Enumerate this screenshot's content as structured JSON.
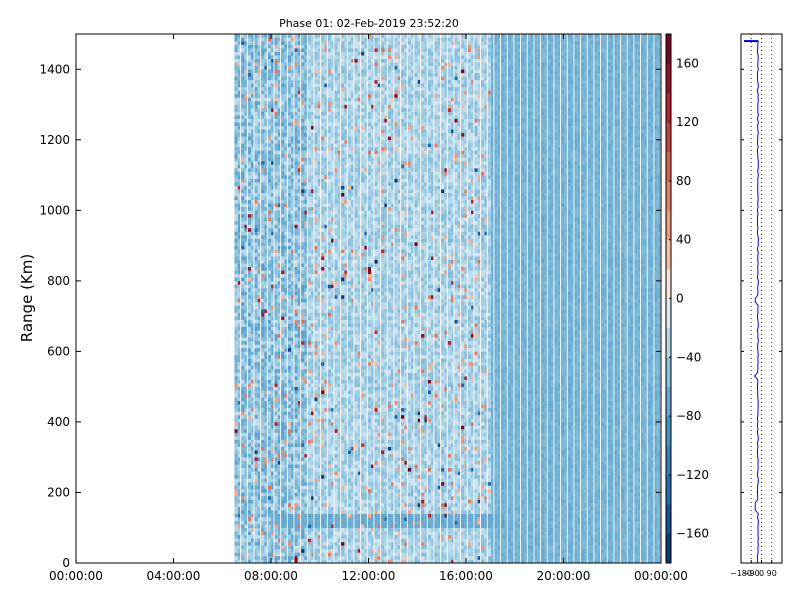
{
  "chart_data": [
    {
      "type": "heatmap",
      "title": "Phase 01: 02-Feb-2019 23:52:20",
      "ylabel": "Range (Km)",
      "xlabel": "",
      "x_ticks": [
        "00:00:00",
        "04:00:00",
        "08:00:00",
        "12:00:00",
        "16:00:00",
        "20:00:00",
        "00:00:00"
      ],
      "x_range_hours": [
        0,
        24
      ],
      "ylim": [
        0,
        1500
      ],
      "y_ticks": [
        0,
        200,
        400,
        600,
        800,
        1000,
        1200,
        1400
      ],
      "data_start_hour": 6.5,
      "colormap": "RdBu_r",
      "colorbar": {
        "range": [
          -180,
          180
        ],
        "ticks": [
          160,
          120,
          80,
          40,
          0,
          -40,
          -80,
          -120,
          -160
        ]
      },
      "notes_visible": {
        "dominant_value_range": [
          -80,
          -20
        ]
      }
    },
    {
      "type": "line",
      "x_ticks": [
        "-180",
        "-90",
        "0",
        "90"
      ],
      "xlim": [
        -180,
        180
      ],
      "ylim": [
        0,
        1500
      ],
      "grid": true,
      "series_color": "#0000ff"
    }
  ]
}
